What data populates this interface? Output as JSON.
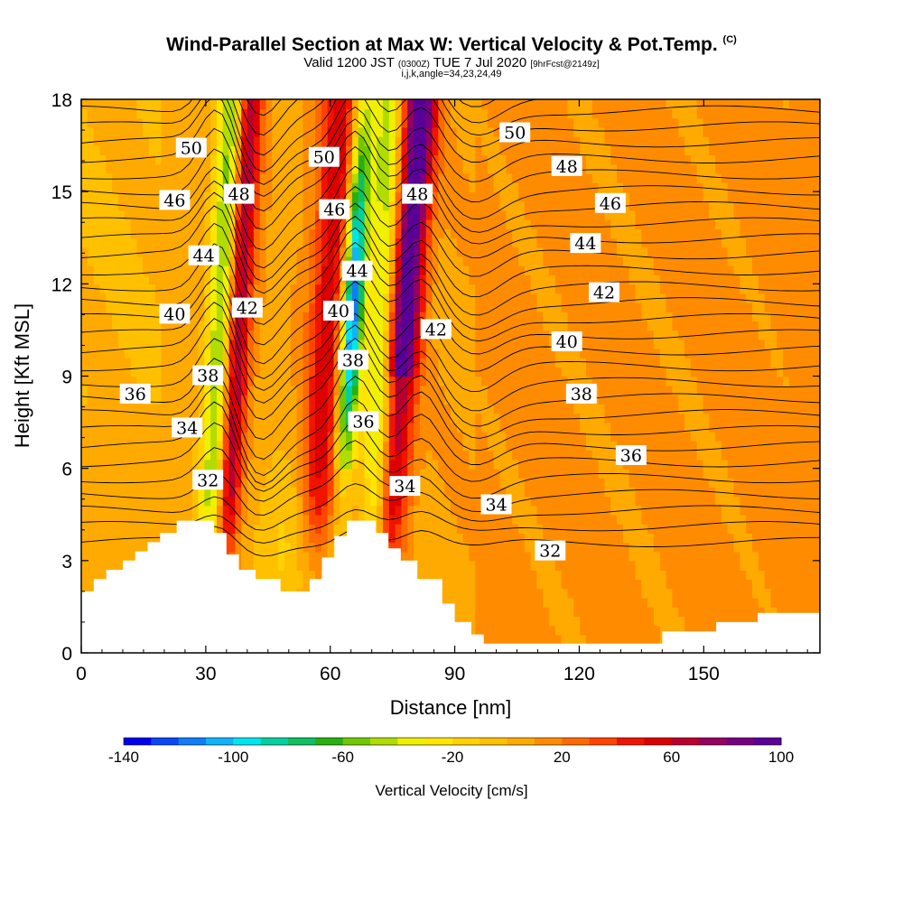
{
  "header": {
    "title": "Wind-Parallel Section at Max W: Vertical Velocity & Pot.Temp.",
    "title_mark": "(C)",
    "valid_prefix": "Valid 1200 JST",
    "valid_utc": "(0300Z)",
    "valid_date": "TUE 7 Jul 2020",
    "forecast": "[9hrFcst@2149z]",
    "grid_info": "i,j,k,angle=34,23,24,49"
  },
  "chart_data": {
    "type": "contour",
    "xlabel": "Distance [nm]",
    "ylabel": "Height [Kft MSL]",
    "xlim": [
      0,
      178
    ],
    "ylim": [
      0,
      18
    ],
    "x_ticks": [
      "0",
      "30",
      "60",
      "90",
      "120",
      "150"
    ],
    "x_tick_values": [
      0,
      30,
      60,
      90,
      120,
      150
    ],
    "y_ticks": [
      "0",
      "3",
      "6",
      "9",
      "12",
      "15",
      "18"
    ],
    "y_tick_values": [
      0,
      3,
      6,
      9,
      12,
      15,
      18
    ],
    "colorbar": {
      "title": "Vertical Velocity [cm/s]",
      "min": -140,
      "max": 100,
      "step": 10,
      "tick_labels": [
        "-140",
        "-100",
        "-60",
        "-20",
        "20",
        "60",
        "100"
      ],
      "tick_values": [
        -140,
        -100,
        -60,
        -20,
        20,
        60,
        100
      ],
      "colors": [
        "#0000f0",
        "#0a46f5",
        "#0f7df8",
        "#10b4f8",
        "#00e6ee",
        "#00d0a0",
        "#10c060",
        "#28b010",
        "#70c800",
        "#b0dc00",
        "#f0f000",
        "#ffe600",
        "#ffd200",
        "#ffc000",
        "#ffaa00",
        "#ff8c00",
        "#ff6a00",
        "#ff4400",
        "#f01400",
        "#dc0000",
        "#b80030",
        "#960060",
        "#780080",
        "#5a0096"
      ]
    },
    "theta_contour_labels": [
      {
        "text": "50",
        "x": 26.5,
        "y": 16.4
      },
      {
        "text": "50",
        "x": 58.5,
        "y": 16.1
      },
      {
        "text": "50",
        "x": 104.5,
        "y": 16.9
      },
      {
        "text": "48",
        "x": 38,
        "y": 14.9
      },
      {
        "text": "48",
        "x": 81,
        "y": 14.9
      },
      {
        "text": "48",
        "x": 117,
        "y": 15.8
      },
      {
        "text": "46",
        "x": 22.5,
        "y": 14.7
      },
      {
        "text": "46",
        "x": 61,
        "y": 14.4
      },
      {
        "text": "46",
        "x": 127.5,
        "y": 14.6
      },
      {
        "text": "44",
        "x": 29.5,
        "y": 12.9
      },
      {
        "text": "44",
        "x": 66.5,
        "y": 12.4
      },
      {
        "text": "44",
        "x": 121.5,
        "y": 13.3
      },
      {
        "text": "42",
        "x": 40,
        "y": 11.2
      },
      {
        "text": "42",
        "x": 85.5,
        "y": 10.5
      },
      {
        "text": "42",
        "x": 126,
        "y": 11.7
      },
      {
        "text": "40",
        "x": 22.5,
        "y": 11.0
      },
      {
        "text": "40",
        "x": 62,
        "y": 11.1
      },
      {
        "text": "40",
        "x": 117,
        "y": 10.1
      },
      {
        "text": "38",
        "x": 30.5,
        "y": 9.0
      },
      {
        "text": "38",
        "x": 65.5,
        "y": 9.5
      },
      {
        "text": "38",
        "x": 120.5,
        "y": 8.4
      },
      {
        "text": "36",
        "x": 13,
        "y": 8.4
      },
      {
        "text": "36",
        "x": 68,
        "y": 7.5
      },
      {
        "text": "36",
        "x": 132.5,
        "y": 6.4
      },
      {
        "text": "34",
        "x": 25.5,
        "y": 7.3
      },
      {
        "text": "34",
        "x": 78,
        "y": 5.4
      },
      {
        "text": "34",
        "x": 100,
        "y": 4.8
      },
      {
        "text": "32",
        "x": 30.5,
        "y": 5.6
      },
      {
        "text": "32",
        "x": 113,
        "y": 3.3
      }
    ],
    "terrain_profile": [
      [
        0,
        2
      ],
      [
        3,
        2
      ],
      [
        3,
        2.4
      ],
      [
        6,
        2.4
      ],
      [
        6,
        2.7
      ],
      [
        10,
        2.7
      ],
      [
        10,
        3.0
      ],
      [
        13,
        3.0
      ],
      [
        13,
        3.3
      ],
      [
        16,
        3.3
      ],
      [
        16,
        3.6
      ],
      [
        19,
        3.6
      ],
      [
        19,
        3.9
      ],
      [
        23,
        3.9
      ],
      [
        23,
        4.3
      ],
      [
        32,
        4.3
      ],
      [
        32,
        3.9
      ],
      [
        35,
        3.9
      ],
      [
        35,
        3.2
      ],
      [
        38,
        3.2
      ],
      [
        38,
        2.7
      ],
      [
        42,
        2.7
      ],
      [
        42,
        2.4
      ],
      [
        48,
        2.4
      ],
      [
        48,
        2.0
      ],
      [
        55,
        2.0
      ],
      [
        55,
        2.4
      ],
      [
        58,
        2.4
      ],
      [
        58,
        3.1
      ],
      [
        61,
        3.1
      ],
      [
        61,
        3.8
      ],
      [
        64,
        3.8
      ],
      [
        64,
        4.3
      ],
      [
        71,
        4.3
      ],
      [
        71,
        3.9
      ],
      [
        74,
        3.9
      ],
      [
        74,
        3.4
      ],
      [
        77,
        3.4
      ],
      [
        77,
        3.0
      ],
      [
        81,
        3.0
      ],
      [
        81,
        2.4
      ],
      [
        87,
        2.4
      ],
      [
        87,
        1.6
      ],
      [
        90,
        1.6
      ],
      [
        90,
        1.0
      ],
      [
        94,
        1.0
      ],
      [
        94,
        0.6
      ],
      [
        97,
        0.6
      ],
      [
        97,
        0.3
      ],
      [
        103,
        0.3
      ],
      [
        103,
        0.3
      ],
      [
        116,
        0.3
      ],
      [
        116,
        0.3
      ],
      [
        140,
        0.3
      ],
      [
        140,
        0.7
      ],
      [
        153,
        0.7
      ],
      [
        153,
        1.0
      ],
      [
        163,
        1.0
      ],
      [
        163,
        1.3
      ],
      [
        178,
        1.3
      ]
    ]
  }
}
